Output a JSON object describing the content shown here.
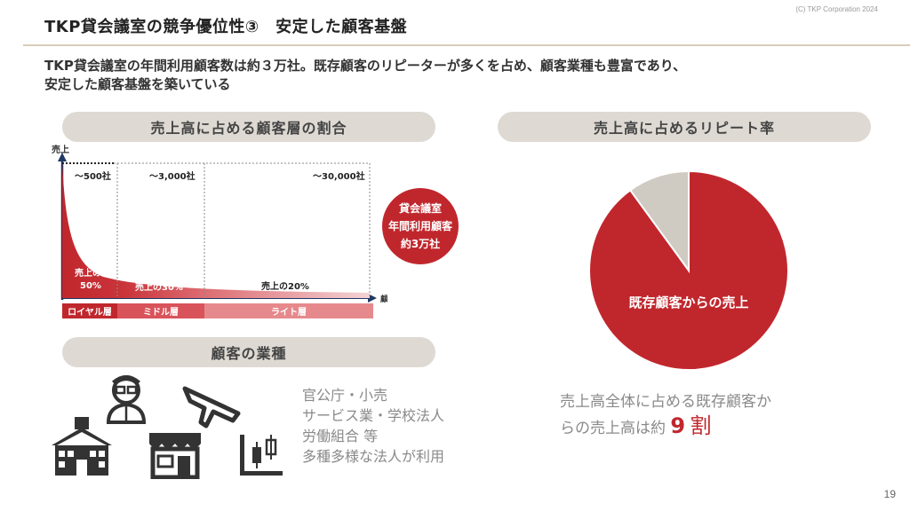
{
  "header": {
    "copyright": "(C) TKP Corporation 2024",
    "title": "TKP貸会議室の競争優位性③　安定した顧客基盤",
    "lead_line1": "TKP貸会議室の年間利用顧客数は約３万社。既存顧客のリピーターが多くを占め、顧客業種も豊富であり、",
    "lead_line2": "安定した顧客基盤を築いている"
  },
  "left_chart": {
    "pill_label": "売上高に占める顧客層の割合",
    "y_axis_label": "売上",
    "x_axis_label": "顧客層",
    "segments": [
      {
        "range": "～500社",
        "share": "売上の\n50%",
        "share_line1": "売上の",
        "share_line2": "50%",
        "tier": "ロイヤル層",
        "color": "#c0272d"
      },
      {
        "range": "～3,000社",
        "share": "売上の30%",
        "tier": "ミドル層",
        "color": "#d9535a"
      },
      {
        "range": "～30,000社",
        "share": "売上の20%",
        "tier": "ライト層",
        "color": "#e6898d"
      }
    ],
    "badge_lines": [
      "貸会議室",
      "年間利用顧客",
      "約3万社"
    ]
  },
  "industry": {
    "pill_label": "顧客の業種",
    "lines": [
      "官公庁・小売",
      "サービス業・学校法人",
      "労働組合 等",
      "多種多様な法人が利用"
    ],
    "icons": [
      "school-icon",
      "doctor-icon",
      "shop-icon",
      "airplane-icon",
      "factory-chart-icon"
    ]
  },
  "right_chart": {
    "pill_label": "売上高に占めるリピート率",
    "slice_label": "既存顧客からの売上",
    "caption_line1": "売上高全体に占める既存顧客か",
    "caption_line2_prefix": "らの売上高は約",
    "caption_value": "９割",
    "caption_value_num": "9",
    "caption_value_unit": "割"
  },
  "chart_data": {
    "type": "pie",
    "title": "売上高に占めるリピート率",
    "series": [
      {
        "name": "既存顧客からの売上",
        "values": [
          90
        ]
      },
      {
        "values": [
          10
        ]
      }
    ],
    "colors": [
      "#c0272d",
      "#cfcac2"
    ]
  },
  "footer": {
    "page_number": "19"
  }
}
